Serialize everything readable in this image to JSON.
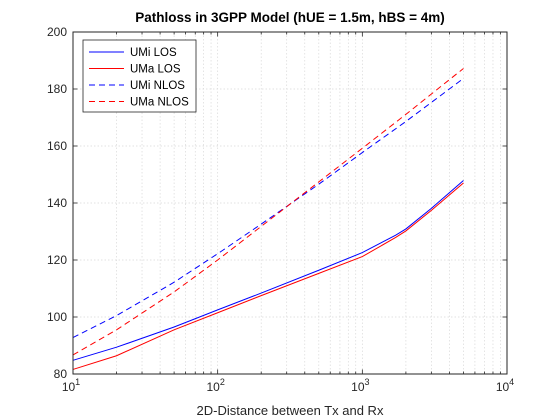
{
  "chart_data": {
    "type": "line",
    "title": "Pathloss in 3GPP Model (hUE = 1.5m, hBS = 4m)",
    "xlabel": "2D-Distance between Tx and Rx",
    "ylabel": "",
    "xscale": "log",
    "xlim": [
      10,
      10000
    ],
    "ylim": [
      80,
      200
    ],
    "grid": "on (major and minor, dotted)",
    "legend_position": "top-left",
    "x_ticks": [
      {
        "base": "10",
        "exp": "1",
        "value": 10
      },
      {
        "base": "10",
        "exp": "2",
        "value": 100
      },
      {
        "base": "10",
        "exp": "3",
        "value": 1000
      },
      {
        "base": "10",
        "exp": "4",
        "value": 10000
      }
    ],
    "y_ticks": [
      80,
      100,
      120,
      140,
      160,
      180,
      200
    ],
    "series": [
      {
        "name": "UMi LOS",
        "color": "#0000ff",
        "dash": "solid",
        "points": [
          [
            10,
            84.8
          ],
          [
            20,
            89.4
          ],
          [
            50,
            96.5
          ],
          [
            100,
            102.5
          ],
          [
            200,
            108.4
          ],
          [
            500,
            116.4
          ],
          [
            1000,
            122.6
          ],
          [
            1700,
            128.7
          ],
          [
            2000,
            130.9
          ],
          [
            3000,
            138.1
          ],
          [
            5000,
            147.9
          ]
        ]
      },
      {
        "name": "UMa LOS",
        "color": "#ff0000",
        "dash": "solid",
        "points": [
          [
            10,
            81.6
          ],
          [
            20,
            86.4
          ],
          [
            50,
            95.5
          ],
          [
            100,
            101.5
          ],
          [
            200,
            107.5
          ],
          [
            500,
            115.3
          ],
          [
            1000,
            121.2
          ],
          [
            1700,
            127.9
          ],
          [
            2000,
            130.2
          ],
          [
            3000,
            137.4
          ],
          [
            5000,
            147.0
          ]
        ]
      },
      {
        "name": "UMi NLOS",
        "color": "#0000ff",
        "dash": "dashed",
        "points": [
          [
            10,
            92.8
          ],
          [
            20,
            100.5
          ],
          [
            50,
            112.2
          ],
          [
            100,
            122.2
          ],
          [
            200,
            132.6
          ],
          [
            500,
            146.6
          ],
          [
            1000,
            157.7
          ],
          [
            2000,
            168.6
          ],
          [
            5000,
            183.7
          ]
        ]
      },
      {
        "name": "UMa NLOS",
        "color": "#ff0000",
        "dash": "dashed",
        "points": [
          [
            10,
            86.7
          ],
          [
            20,
            95.5
          ],
          [
            50,
            108.8
          ],
          [
            100,
            120.0
          ],
          [
            200,
            131.8
          ],
          [
            500,
            147.4
          ],
          [
            1000,
            159.2
          ],
          [
            2000,
            171.1
          ],
          [
            5000,
            187.2
          ]
        ]
      }
    ]
  }
}
